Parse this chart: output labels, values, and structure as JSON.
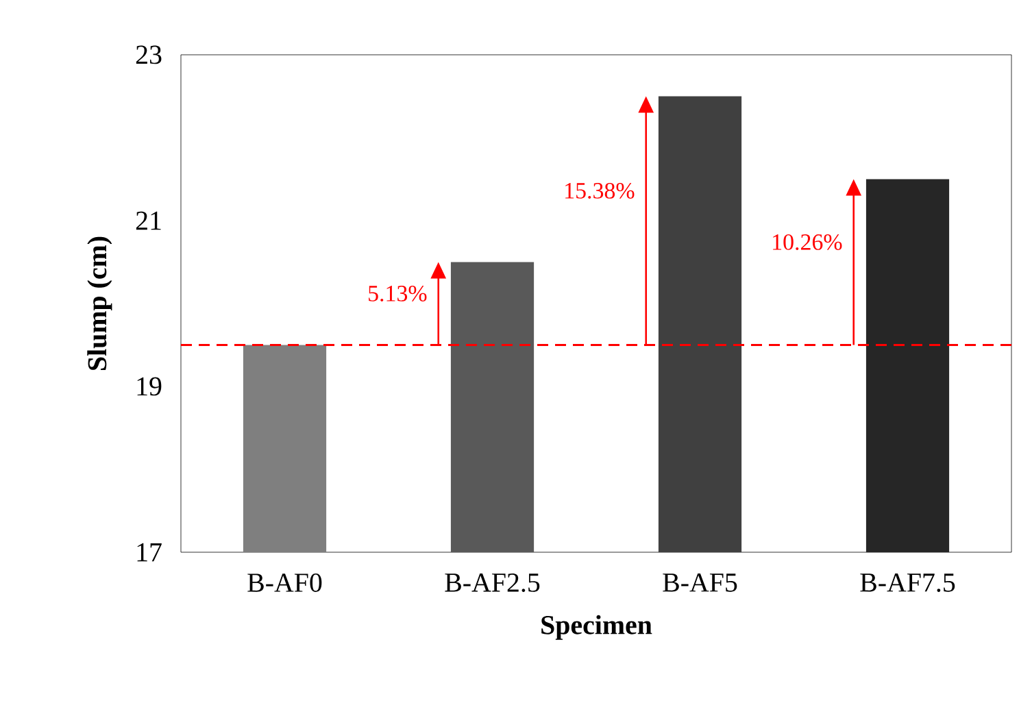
{
  "chart_data": {
    "type": "bar",
    "xlabel": "Specimen",
    "ylabel": "Slump (cm)",
    "categories": [
      "B-AF0",
      "B-AF2.5",
      "B-AF5",
      "B-AF7.5"
    ],
    "values": [
      19.5,
      20.5,
      22.5,
      21.5
    ],
    "colors": [
      "#7f7f7f",
      "#595959",
      "#404040",
      "#262626"
    ],
    "ylim": [
      17,
      23
    ],
    "yticks": [
      17,
      19,
      21,
      23
    ],
    "grid": false,
    "ref_lines": [
      {
        "axis": "y",
        "value": 19.5,
        "color": "#ff0000",
        "line_style": "dashed"
      }
    ],
    "annotations": [
      "5.13%",
      "15.38%",
      "10.26%"
    ]
  }
}
